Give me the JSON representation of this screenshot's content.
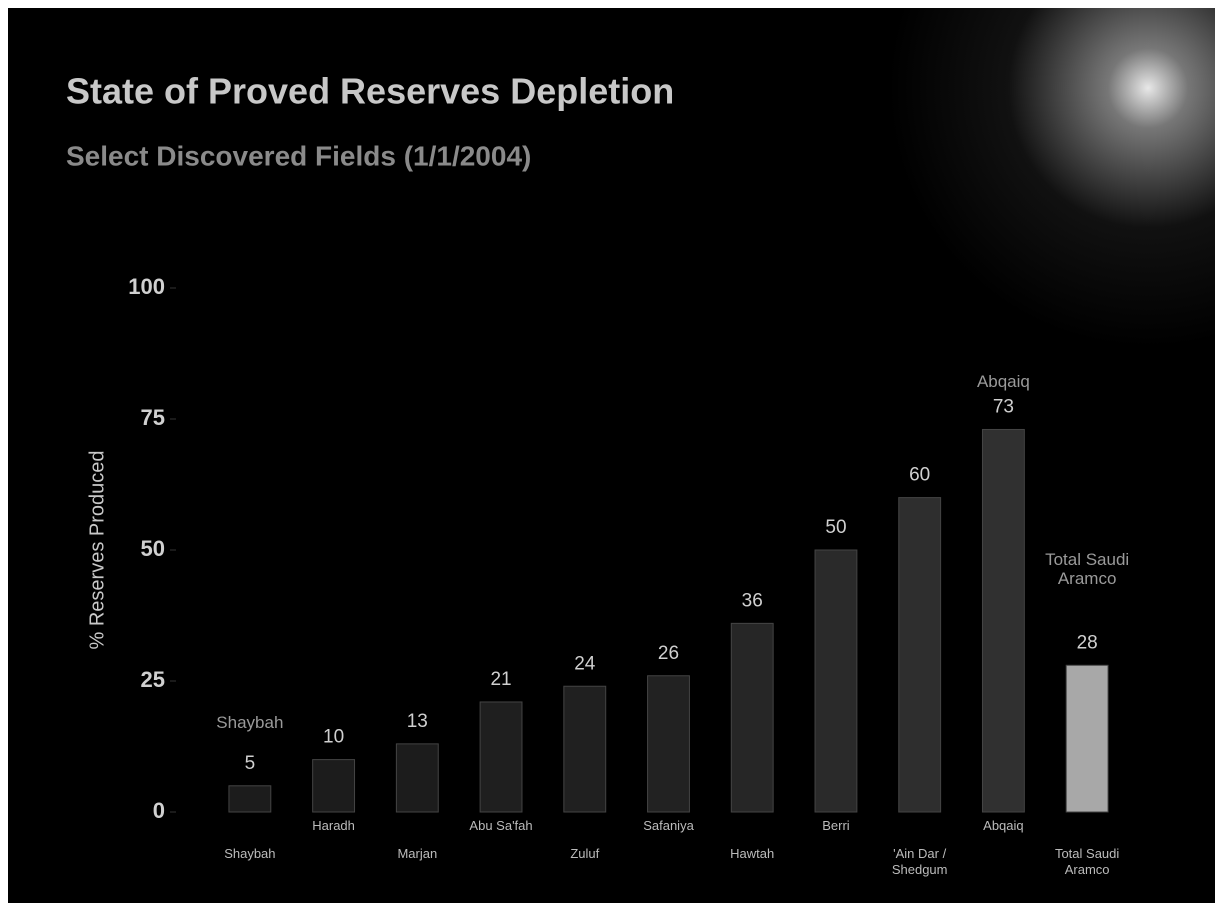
{
  "chart_data": {
    "type": "bar",
    "title": "State of Proved Reserves Depletion",
    "subtitle": "Select Discovered Fields (1/1/2004)",
    "y_label": "% Reserves Produced",
    "categories": [
      "Shaybah",
      "Haradh",
      "Marjan",
      "Abu Sa'fah",
      "Zuluf",
      "Safaniya",
      "Hawtah",
      "Berri",
      "'Ain Dar / Shedgum",
      "Abqaiq",
      "Total Saudi Aramco"
    ],
    "values": [
      5,
      10,
      13,
      21,
      24,
      26,
      36,
      50,
      60,
      73,
      28
    ],
    "colors": [
      "#1c1c1c",
      "#1c1c1c",
      "#1c1c1c",
      "#1f1f1f",
      "#202020",
      "#222222",
      "#262626",
      "#2a2a2a",
      "#2e2e2e",
      "#303030",
      "#a8a8a8"
    ],
    "annotations": [
      {
        "text": "Shaybah",
        "category": 0,
        "value": 17
      },
      {
        "text": "Abqaiq",
        "category": 9,
        "value": 82
      },
      {
        "text": "Total Saudi Aramco",
        "category": 10,
        "value": 48
      }
    ],
    "ylim": [
      0,
      100
    ],
    "yticks": [
      0,
      25,
      50,
      75,
      100
    ],
    "grid": false
  }
}
